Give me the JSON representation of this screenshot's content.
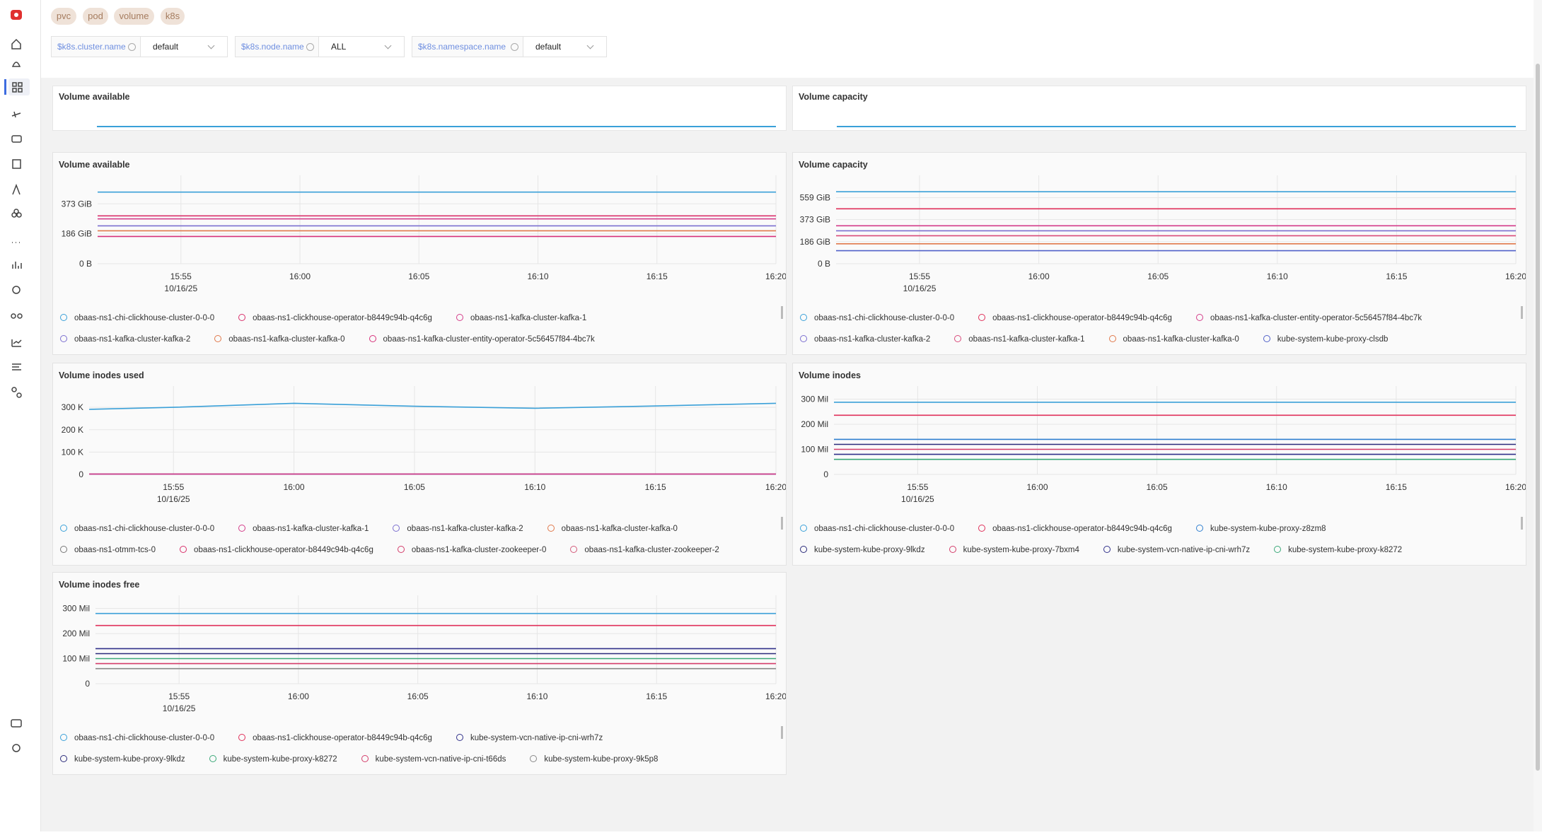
{
  "tags": [
    "pvc",
    "pod",
    "volume",
    "k8s"
  ],
  "filters": [
    {
      "label": "$k8s.cluster.name",
      "value": "default"
    },
    {
      "label": "$k8s.node.name",
      "value": "ALL"
    },
    {
      "label": "$k8s.namespace.name",
      "value": "default"
    }
  ],
  "collapsed_panels": [
    "Volume available",
    "Volume capacity"
  ],
  "panels": [
    {
      "title": "Volume available",
      "xlim": [
        "15:51:30",
        "16:20"
      ],
      "x": [
        "15:51:30",
        "15:55",
        "16:00",
        "16:05",
        "16:10",
        "16:15",
        "16:20"
      ],
      "xticks": [
        "15:55",
        "16:00",
        "16:05",
        "16:10",
        "16:15",
        "16:20"
      ],
      "x_date_label": "10/16/25",
      "ylim": [
        0,
        515
      ],
      "yticks": [
        {
          "value": 0,
          "label": "0 B"
        },
        {
          "value": 186,
          "label": "186 GiB"
        },
        {
          "value": 373,
          "label": "373 GiB"
        }
      ],
      "grid": true,
      "series": [
        {
          "name": "obaas-ns1-chi-clickhouse-cluster-0-0-0",
          "color": "#3aa0d8",
          "values": [
            446,
            446,
            446,
            446,
            446,
            446,
            446
          ]
        },
        {
          "name": "obaas-ns1-clickhouse-operator-b8449c94b-q4c6g",
          "color": "#d9306b",
          "values": [
            298,
            298,
            298,
            298,
            298,
            298,
            298
          ]
        },
        {
          "name": "obaas-ns1-kafka-cluster-kafka-1",
          "color": "#d43c8a",
          "values": [
            279,
            279,
            279,
            279,
            279,
            279,
            279
          ]
        },
        {
          "name": "obaas-ns1-kafka-cluster-kafka-2",
          "color": "#7b6fd0",
          "values": [
            236,
            236,
            236,
            236,
            236,
            236,
            236
          ]
        },
        {
          "name": "obaas-ns1-kafka-cluster-kafka-0",
          "color": "#e0784a",
          "values": [
            205,
            205,
            205,
            205,
            205,
            205,
            205
          ]
        },
        {
          "name": "obaas-ns1-kafka-cluster-entity-operator-5c56457f84-4bc7k",
          "color": "#d6307a",
          "values": [
            170,
            170,
            170,
            170,
            170,
            170,
            170
          ]
        }
      ]
    },
    {
      "title": "Volume capacity",
      "xlim": [
        "15:51:30",
        "16:20"
      ],
      "x": [
        "15:51:30",
        "15:55",
        "16:00",
        "16:05",
        "16:10",
        "16:15",
        "16:20"
      ],
      "xticks": [
        "15:55",
        "16:00",
        "16:05",
        "16:10",
        "16:15",
        "16:20"
      ],
      "x_date_label": "10/16/25",
      "ylim": [
        0,
        700
      ],
      "yticks": [
        {
          "value": 0,
          "label": "0 B"
        },
        {
          "value": 186,
          "label": "186 GiB"
        },
        {
          "value": 373,
          "label": "373 GiB"
        },
        {
          "value": 559,
          "label": "559 GiB"
        }
      ],
      "grid": true,
      "series": [
        {
          "name": "obaas-ns1-chi-clickhouse-cluster-0-0-0",
          "color": "#3aa0d8",
          "values": [
            609,
            609,
            609,
            609,
            609,
            609,
            609
          ]
        },
        {
          "name": "obaas-ns1-clickhouse-operator-b8449c94b-q4c6g",
          "color": "#e0305a",
          "values": [
            465,
            465,
            465,
            465,
            465,
            465,
            465
          ]
        },
        {
          "name": "obaas-ns1-kafka-cluster-entity-operator-5c56457f84-4bc7k",
          "color": "#d43c8a",
          "values": [
            321,
            321,
            321,
            321,
            321,
            321,
            321
          ]
        },
        {
          "name": "obaas-ns1-kafka-cluster-kafka-2",
          "color": "#7b6fd0",
          "values": [
            279,
            279,
            279,
            279,
            279,
            279,
            279
          ]
        },
        {
          "name": "obaas-ns1-kafka-cluster-kafka-1",
          "color": "#d94a7a",
          "values": [
            237,
            237,
            237,
            237,
            237,
            237,
            237
          ]
        },
        {
          "name": "obaas-ns1-kafka-cluster-kafka-0",
          "color": "#e0784a",
          "values": [
            169,
            169,
            169,
            169,
            169,
            169,
            169
          ]
        },
        {
          "name": "kube-system-kube-proxy-clsdb",
          "color": "#5060c8",
          "values": [
            110,
            110,
            110,
            110,
            110,
            110,
            110
          ]
        }
      ]
    },
    {
      "title": "Volume inodes used",
      "xlim": [
        "15:51:30",
        "16:20"
      ],
      "x": [
        "15:51:30",
        "15:55",
        "16:00",
        "16:05",
        "16:10",
        "16:15",
        "16:20"
      ],
      "xticks": [
        "15:55",
        "16:00",
        "16:05",
        "16:10",
        "16:15",
        "16:20"
      ],
      "x_date_label": "10/16/25",
      "ylim": [
        0,
        370000
      ],
      "yticks": [
        0,
        {
          "value": 100000,
          "label": "100 K"
        },
        {
          "value": 200000,
          "label": "200 K"
        },
        {
          "value": 300000,
          "label": "300 K"
        }
      ],
      "grid": true,
      "series": [
        {
          "name": "obaas-ns1-chi-clickhouse-cluster-0-0-0",
          "color": "#3aa0d8",
          "values": [
            291000,
            300000,
            318000,
            305000,
            296000,
            306000,
            318000
          ]
        },
        {
          "name": "obaas-ns1-kafka-cluster-kafka-1",
          "color": "#d43c8a",
          "values": [
            1500,
            1500,
            1500,
            1500,
            1500,
            1500,
            1500
          ]
        },
        {
          "name": "obaas-ns1-kafka-cluster-kafka-2",
          "color": "#7b6fd0",
          "values": [
            1400,
            1400,
            1400,
            1400,
            1400,
            1400,
            1400
          ]
        },
        {
          "name": "obaas-ns1-kafka-cluster-kafka-0",
          "color": "#e0784a",
          "values": [
            1300,
            1300,
            1300,
            1300,
            1300,
            1300,
            1300
          ]
        },
        {
          "name": "obaas-ns1-otmm-tcs-0",
          "color": "#777777",
          "values": [
            1200,
            1200,
            1200,
            1200,
            1200,
            1200,
            1200
          ]
        },
        {
          "name": "obaas-ns1-clickhouse-operator-b8449c94b-q4c6g",
          "color": "#d9306b",
          "values": [
            1100,
            1100,
            1100,
            1100,
            1100,
            1100,
            1100
          ]
        },
        {
          "name": "obaas-ns1-kafka-cluster-zookeeper-0",
          "color": "#d43c6a",
          "values": [
            1000,
            1000,
            1000,
            1000,
            1000,
            1000,
            1000
          ]
        },
        {
          "name": "obaas-ns1-kafka-cluster-zookeeper-2",
          "color": "#d45a7a",
          "values": [
            900,
            900,
            900,
            900,
            900,
            900,
            900
          ]
        }
      ]
    },
    {
      "title": "Volume inodes",
      "xlim": [
        "15:51:30",
        "16:20"
      ],
      "x": [
        "15:51:30",
        "15:55",
        "16:00",
        "16:05",
        "16:10",
        "16:15",
        "16:20"
      ],
      "xticks": [
        "15:55",
        "16:00",
        "16:05",
        "16:10",
        "16:15",
        "16:20"
      ],
      "x_date_label": "10/16/25",
      "ylim": [
        0,
        330000000
      ],
      "yticks": [
        0,
        {
          "value": 100000000,
          "label": "100 Mil"
        },
        {
          "value": 200000000,
          "label": "200 Mil"
        },
        {
          "value": 300000000,
          "label": "300 Mil"
        }
      ],
      "grid": true,
      "series": [
        {
          "name": "obaas-ns1-chi-clickhouse-cluster-0-0-0",
          "color": "#3aa0d8",
          "values": [
            288000000,
            288000000,
            288000000,
            288000000,
            288000000,
            288000000,
            288000000
          ]
        },
        {
          "name": "obaas-ns1-clickhouse-operator-b8449c94b-q4c6g",
          "color": "#e0305a",
          "values": [
            236000000,
            236000000,
            236000000,
            236000000,
            236000000,
            236000000,
            236000000
          ]
        },
        {
          "name": "kube-system-kube-proxy-z8zm8",
          "color": "#2f7fd0",
          "values": [
            140000000,
            140000000,
            140000000,
            140000000,
            140000000,
            140000000,
            140000000
          ]
        },
        {
          "name": "kube-system-kube-proxy-9lkdz",
          "color": "#2a2a7a",
          "values": [
            120000000,
            120000000,
            120000000,
            120000000,
            120000000,
            120000000,
            120000000
          ]
        },
        {
          "name": "kube-system-kube-proxy-7bxm4",
          "color": "#d43c6a",
          "values": [
            100000000,
            100000000,
            100000000,
            100000000,
            100000000,
            100000000,
            100000000
          ]
        },
        {
          "name": "kube-system-vcn-native-ip-cni-wrh7z",
          "color": "#30308a",
          "values": [
            80000000,
            80000000,
            80000000,
            80000000,
            80000000,
            80000000,
            80000000
          ]
        },
        {
          "name": "kube-system-kube-proxy-k8272",
          "color": "#3aa878",
          "values": [
            60000000,
            60000000,
            60000000,
            60000000,
            60000000,
            60000000,
            60000000
          ]
        }
      ]
    },
    {
      "title": "Volume inodes free",
      "xlim": [
        "15:51:30",
        "16:20"
      ],
      "x": [
        "15:51:30",
        "15:55",
        "16:00",
        "16:05",
        "16:10",
        "16:15",
        "16:20"
      ],
      "xticks": [
        "15:55",
        "16:00",
        "16:05",
        "16:10",
        "16:15",
        "16:20"
      ],
      "x_date_label": "10/16/25",
      "ylim": [
        0,
        330000000
      ],
      "yticks": [
        0,
        {
          "value": 100000000,
          "label": "100 Mil"
        },
        {
          "value": 200000000,
          "label": "200 Mil"
        },
        {
          "value": 300000000,
          "label": "300 Mil"
        }
      ],
      "grid": true,
      "series": [
        {
          "name": "obaas-ns1-chi-clickhouse-cluster-0-0-0",
          "color": "#3aa0d8",
          "values": [
            280000000,
            280000000,
            280000000,
            280000000,
            280000000,
            280000000,
            280000000
          ]
        },
        {
          "name": "obaas-ns1-clickhouse-operator-b8449c94b-q4c6g",
          "color": "#e0305a",
          "values": [
            232000000,
            232000000,
            232000000,
            232000000,
            232000000,
            232000000,
            232000000
          ]
        },
        {
          "name": "kube-system-vcn-native-ip-cni-wrh7z",
          "color": "#30308a",
          "values": [
            140000000,
            140000000,
            140000000,
            140000000,
            140000000,
            140000000,
            140000000
          ]
        },
        {
          "name": "kube-system-kube-proxy-9lkdz",
          "color": "#2a2a7a",
          "values": [
            120000000,
            120000000,
            120000000,
            120000000,
            120000000,
            120000000,
            120000000
          ]
        },
        {
          "name": "kube-system-kube-proxy-k8272",
          "color": "#3aa878",
          "values": [
            100000000,
            100000000,
            100000000,
            100000000,
            100000000,
            100000000,
            100000000
          ]
        },
        {
          "name": "kube-system-vcn-native-ip-cni-t66ds",
          "color": "#d43c6a",
          "values": [
            80000000,
            80000000,
            80000000,
            80000000,
            80000000,
            80000000,
            80000000
          ]
        },
        {
          "name": "kube-system-kube-proxy-9k5p8",
          "color": "#888888",
          "values": [
            60000000,
            60000000,
            60000000,
            60000000,
            60000000,
            60000000,
            60000000
          ]
        }
      ]
    }
  ]
}
